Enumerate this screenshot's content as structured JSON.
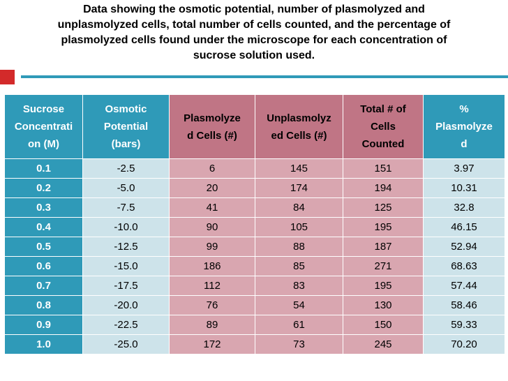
{
  "title": {
    "lines": [
      "Data showing the osmotic potential, number of plasmolyzed and",
      "unplasmolyzed cells, total number of cells counted, and the percentage of",
      "plasmolyzed cells found under the microscope for each concentration of",
      "sucrose solution used."
    ]
  },
  "colors": {
    "header_blue": "#2f9ab8",
    "header_rose": "#c07585",
    "cell_light_blue": "#cde3ea",
    "cell_rose": "#d9a6b0",
    "accent_red": "#d32a2a"
  },
  "table": {
    "headers": [
      [
        "Sucrose",
        "Concentrati",
        "on (M)"
      ],
      [
        "Osmotic",
        "Potential",
        "(bars)"
      ],
      [
        "Plasmolyze",
        "d Cells (#)"
      ],
      [
        "Unplasmolyz",
        "ed Cells (#)"
      ],
      [
        "Total # of",
        "Cells",
        "Counted"
      ],
      [
        "%",
        "Plasmolyze",
        "d"
      ]
    ],
    "rows": [
      [
        "0.1",
        "-2.5",
        "6",
        "145",
        "151",
        "3.97"
      ],
      [
        "0.2",
        "-5.0",
        "20",
        "174",
        "194",
        "10.31"
      ],
      [
        "0.3",
        "-7.5",
        "41",
        "84",
        "125",
        "32.8"
      ],
      [
        "0.4",
        "-10.0",
        "90",
        "105",
        "195",
        "46.15"
      ],
      [
        "0.5",
        "-12.5",
        "99",
        "88",
        "187",
        "52.94"
      ],
      [
        "0.6",
        "-15.0",
        "186",
        "85",
        "271",
        "68.63"
      ],
      [
        "0.7",
        "-17.5",
        "112",
        "83",
        "195",
        "57.44"
      ],
      [
        "0.8",
        "-20.0",
        "76",
        "54",
        "130",
        "58.46"
      ],
      [
        "0.9",
        "-22.5",
        "89",
        "61",
        "150",
        "59.33"
      ],
      [
        "1.0",
        "-25.0",
        "172",
        "73",
        "245",
        "70.20"
      ]
    ]
  }
}
